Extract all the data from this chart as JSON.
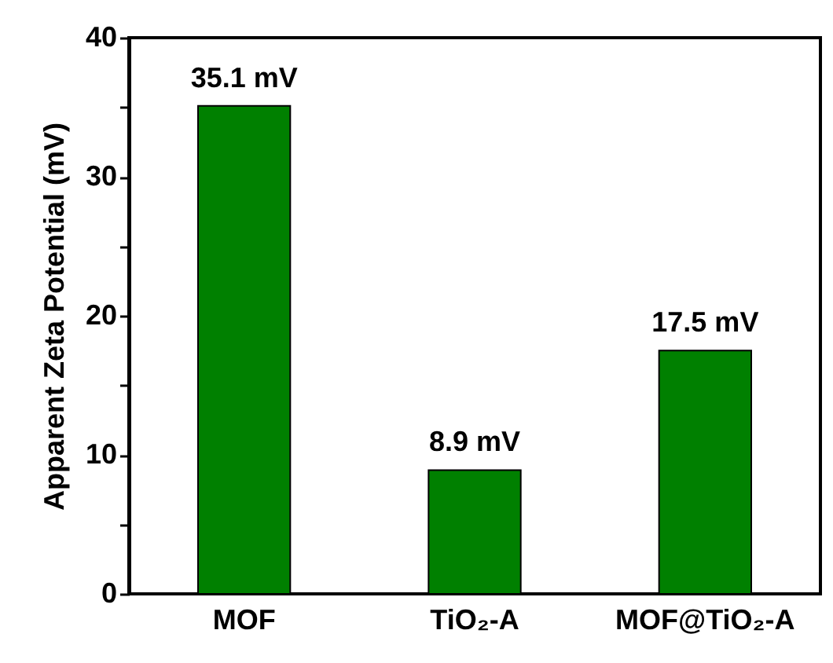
{
  "chart_data": {
    "type": "bar",
    "ylabel": "Apparent Zeta Potential (mV)",
    "categories": [
      "MOF",
      "TiO₂-A",
      "MOF@TiO₂-A"
    ],
    "values": [
      35.1,
      8.9,
      17.5
    ],
    "value_labels": [
      "35.1 mV",
      "8.9 mV",
      "17.5 mV"
    ],
    "color": "#008000",
    "ylim": [
      0,
      40
    ],
    "yticks": [
      0,
      {
        "value": 5,
        "label": null
      },
      10,
      {
        "value": 15,
        "label": null
      },
      20,
      {
        "value": 25,
        "label": null
      },
      30,
      {
        "value": 35,
        "label": null
      },
      40
    ],
    "grid": false
  }
}
